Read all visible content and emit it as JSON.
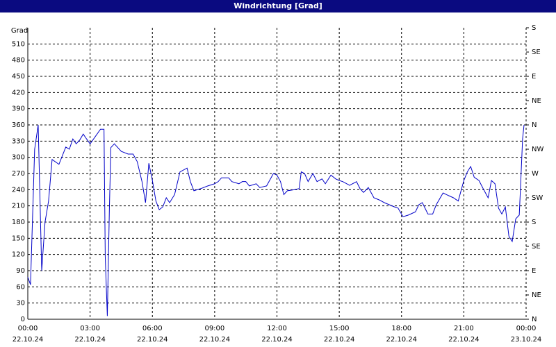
{
  "window_title": "Windrichtung [Grad]",
  "chart_data": {
    "type": "line",
    "y_label": "Grad",
    "xlim": [
      0,
      24
    ],
    "xticks": [
      {
        "value": 0,
        "label": "00:00"
      },
      {
        "value": 3,
        "label": "03:00"
      },
      {
        "value": 6,
        "label": "06:00"
      },
      {
        "value": 9,
        "label": "09:00"
      },
      {
        "value": 12,
        "label": "12:00"
      },
      {
        "value": 15,
        "label": "15:00"
      },
      {
        "value": 18,
        "label": "18:00"
      },
      {
        "value": 21,
        "label": "21:00"
      },
      {
        "value": 24,
        "label": "00:00"
      }
    ],
    "xtick_dates": [
      "22.10.24",
      "22.10.24",
      "22.10.24",
      "22.10.24",
      "22.10.24",
      "22.10.24",
      "22.10.24",
      "22.10.24",
      "23.10.24"
    ],
    "ylim": [
      0,
      540
    ],
    "yticks": [
      0,
      30,
      60,
      90,
      120,
      150,
      180,
      210,
      240,
      270,
      300,
      330,
      360,
      390,
      420,
      450,
      480,
      510
    ],
    "y2lim": [
      0,
      540
    ],
    "y2ticks": [
      {
        "value": 0,
        "label": "N"
      },
      {
        "value": 45,
        "label": "NE"
      },
      {
        "value": 90,
        "label": "E"
      },
      {
        "value": 135,
        "label": "SE"
      },
      {
        "value": 180,
        "label": "S"
      },
      {
        "value": 225,
        "label": "SW"
      },
      {
        "value": 270,
        "label": "W"
      },
      {
        "value": 315,
        "label": "NW"
      },
      {
        "value": 360,
        "label": "N"
      },
      {
        "value": 405,
        "label": "NE"
      },
      {
        "value": 450,
        "label": "E"
      },
      {
        "value": 495,
        "label": "SE"
      },
      {
        "value": 540,
        "label": "S"
      }
    ],
    "grid": true,
    "x": [
      0,
      0.13,
      0.33,
      0.5,
      0.67,
      0.83,
      1,
      1.17,
      1.5,
      1.83,
      2,
      2.17,
      2.33,
      2.5,
      2.67,
      2.83,
      3,
      3.17,
      3.5,
      3.67,
      3.73,
      3.83,
      3.93,
      4,
      4.17,
      4.5,
      4.83,
      5.07,
      5.27,
      5.5,
      5.67,
      5.83,
      6,
      6.17,
      6.33,
      6.5,
      6.67,
      6.83,
      7.07,
      7.33,
      7.67,
      7.83,
      8,
      8.33,
      8.67,
      9,
      9.17,
      9.33,
      9.67,
      9.83,
      10.17,
      10.33,
      10.5,
      10.67,
      11,
      11.17,
      11.5,
      11.83,
      12,
      12.17,
      12.33,
      12.5,
      12.83,
      13.07,
      13.17,
      13.33,
      13.5,
      13.73,
      13.93,
      14.17,
      14.33,
      14.6,
      14.83,
      15,
      15.17,
      15.5,
      15.83,
      16,
      16.17,
      16.4,
      16.67,
      16.93,
      17.17,
      17.67,
      17.83,
      18.07,
      18.33,
      18.67,
      18.83,
      19,
      19.27,
      19.5,
      19.67,
      20,
      20.27,
      20.5,
      20.73,
      21,
      21.17,
      21.33,
      21.5,
      21.73,
      21.93,
      22.17,
      22.33,
      22.5,
      22.67,
      22.83,
      23,
      23.17,
      23.33,
      23.5,
      23.67,
      23.73,
      23.83,
      23.9
    ],
    "series": [
      {
        "color": "#0000c8",
        "values": [
          78,
          64,
          315,
          360,
          90,
          180,
          219,
          296,
          287,
          319,
          315,
          334,
          325,
          332,
          343,
          334,
          325,
          334,
          352,
          352,
          116,
          6,
          206,
          318,
          325,
          311,
          306,
          306,
          292,
          255,
          216,
          289,
          257,
          219,
          203,
          208,
          225,
          216,
          231,
          273,
          280,
          255,
          238,
          242,
          247,
          251,
          255,
          262,
          262,
          255,
          251,
          255,
          255,
          247,
          251,
          244,
          247,
          270,
          267,
          255,
          231,
          238,
          240,
          242,
          273,
          270,
          255,
          270,
          255,
          260,
          251,
          267,
          260,
          257,
          255,
          248,
          255,
          242,
          235,
          244,
          225,
          221,
          216,
          208,
          206,
          190,
          193,
          199,
          212,
          216,
          195,
          195,
          212,
          234,
          229,
          225,
          219,
          257,
          273,
          283,
          263,
          257,
          242,
          225,
          257,
          251,
          206,
          195,
          208,
          154,
          144,
          186,
          193,
          244,
          334,
          360
        ]
      }
    ]
  }
}
